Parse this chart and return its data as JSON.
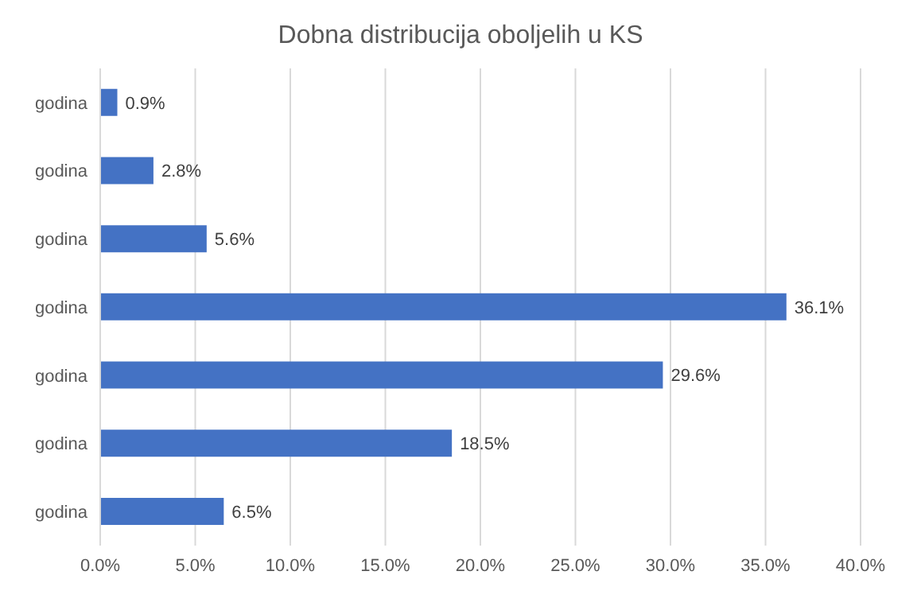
{
  "chart_data": {
    "type": "bar",
    "orientation": "horizontal",
    "title": "Dobna distribucija oboljelih u KS",
    "categories": [
      "godina",
      "godina",
      "godina",
      "godina",
      "godina",
      "godina",
      "godina"
    ],
    "values": [
      0.9,
      2.8,
      5.6,
      36.1,
      29.6,
      18.5,
      6.5
    ],
    "value_labels": [
      "0.9%",
      "2.8%",
      "5.6%",
      "36.1%",
      "29.6%",
      "18.5%",
      "6.5%"
    ],
    "color": "#4472c4",
    "xlim": [
      0,
      40
    ],
    "xticks": [
      {
        "value": 0,
        "label": "0.0%"
      },
      {
        "value": 5,
        "label": "5.0%"
      },
      {
        "value": 10,
        "label": "10.0%"
      },
      {
        "value": 15,
        "label": "15.0%"
      },
      {
        "value": 20,
        "label": "20.0%"
      },
      {
        "value": 25,
        "label": "25.0%"
      },
      {
        "value": 30,
        "label": "30.0%"
      },
      {
        "value": 35,
        "label": "35.0%"
      },
      {
        "value": 40,
        "label": "40.0%"
      }
    ],
    "grid": "x"
  }
}
